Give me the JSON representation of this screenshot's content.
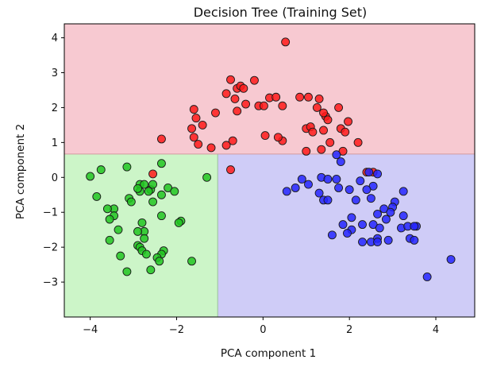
{
  "chart_data": {
    "type": "scatter",
    "title": "Decision Tree (Training Set)",
    "xlabel": "PCA component 1",
    "ylabel": "PCA component 2",
    "xlim": [
      -4.6,
      4.9
    ],
    "ylim": [
      -4.0,
      4.4
    ],
    "xticks": [
      -4,
      -2,
      0,
      2,
      4
    ],
    "yticks": [
      -3,
      -2,
      -1,
      0,
      1,
      2,
      3,
      4
    ],
    "xtick_labels": [
      "−4",
      "−2",
      "0",
      "2",
      "4"
    ],
    "ytick_labels": [
      "−3",
      "−2",
      "−1",
      "0",
      "1",
      "2",
      "3",
      "4"
    ],
    "grid": false,
    "regions": [
      {
        "class": "red",
        "x": [
          -4.6,
          4.9
        ],
        "y": [
          0.67,
          4.4
        ],
        "color": "#f7c9d1"
      },
      {
        "class": "green",
        "x": [
          -4.6,
          -1.05
        ],
        "y": [
          -4.0,
          0.67
        ],
        "color": "#ccf5c8"
      },
      {
        "class": "blue",
        "x": [
          -1.05,
          4.9
        ],
        "y": [
          -4.0,
          0.67
        ],
        "color": "#cfccf7"
      }
    ],
    "boundaries": [
      {
        "orientation": "horizontal",
        "value": 0.67,
        "color": "#d19aa0"
      },
      {
        "orientation": "vertical",
        "value": -1.05,
        "color": "#9ac49a"
      }
    ],
    "series": [
      {
        "color": "#ff1a1a",
        "points": [
          [
            0.52,
            3.88
          ],
          [
            -0.75,
            2.8
          ],
          [
            -0.6,
            2.55
          ],
          [
            -0.52,
            2.62
          ],
          [
            -0.45,
            2.55
          ],
          [
            -0.2,
            2.78
          ],
          [
            -0.85,
            2.4
          ],
          [
            -0.65,
            2.25
          ],
          [
            0.15,
            2.28
          ],
          [
            0.3,
            2.3
          ],
          [
            0.45,
            2.05
          ],
          [
            0.85,
            2.3
          ],
          [
            -0.1,
            2.05
          ],
          [
            0.02,
            2.05
          ],
          [
            -0.4,
            2.1
          ],
          [
            -0.6,
            1.9
          ],
          [
            1.05,
            2.3
          ],
          [
            1.3,
            2.25
          ],
          [
            1.25,
            2.0
          ],
          [
            1.45,
            1.75
          ],
          [
            1.4,
            1.85
          ],
          [
            1.75,
            2.0
          ],
          [
            -1.6,
            1.95
          ],
          [
            -1.65,
            1.4
          ],
          [
            -1.55,
            1.7
          ],
          [
            -1.4,
            1.5
          ],
          [
            -1.1,
            1.85
          ],
          [
            0.05,
            1.2
          ],
          [
            0.45,
            1.05
          ],
          [
            0.35,
            1.15
          ],
          [
            1.5,
            1.65
          ],
          [
            1.0,
            1.4
          ],
          [
            1.1,
            1.45
          ],
          [
            1.15,
            1.3
          ],
          [
            1.4,
            1.35
          ],
          [
            1.8,
            1.4
          ],
          [
            1.9,
            1.3
          ],
          [
            1.97,
            1.6
          ],
          [
            -0.7,
            1.05
          ],
          [
            -1.5,
            0.95
          ],
          [
            -1.2,
            0.85
          ],
          [
            -2.35,
            1.1
          ],
          [
            1.35,
            0.8
          ],
          [
            1.55,
            1.0
          ],
          [
            2.2,
            1.0
          ],
          [
            -0.85,
            0.92
          ],
          [
            -1.6,
            1.15
          ],
          [
            -0.75,
            0.22
          ],
          [
            -2.55,
            0.1
          ],
          [
            1.0,
            0.75
          ],
          [
            1.85,
            0.75
          ],
          [
            2.55,
            0.15
          ],
          [
            2.4,
            0.15
          ]
        ]
      },
      {
        "color": "#21c421",
        "points": [
          [
            -3.75,
            0.22
          ],
          [
            -4.0,
            0.03
          ],
          [
            -3.15,
            0.3
          ],
          [
            -2.35,
            0.4
          ],
          [
            -1.3,
            0.0
          ],
          [
            -2.85,
            -0.2
          ],
          [
            -2.75,
            -0.2
          ],
          [
            -2.6,
            -0.35
          ],
          [
            -2.55,
            -0.2
          ],
          [
            -2.85,
            -0.4
          ],
          [
            -2.65,
            -0.4
          ],
          [
            -2.2,
            -0.3
          ],
          [
            -2.9,
            -0.32
          ],
          [
            -2.05,
            -0.4
          ],
          [
            -3.85,
            -0.55
          ],
          [
            -3.1,
            -0.6
          ],
          [
            -2.35,
            -0.5
          ],
          [
            -3.05,
            -0.7
          ],
          [
            -2.55,
            -0.7
          ],
          [
            -3.45,
            -0.9
          ],
          [
            -3.6,
            -0.9
          ],
          [
            -3.45,
            -1.1
          ],
          [
            -3.55,
            -1.2
          ],
          [
            -2.8,
            -1.3
          ],
          [
            -2.35,
            -1.1
          ],
          [
            -1.9,
            -1.25
          ],
          [
            -1.95,
            -1.3
          ],
          [
            -3.35,
            -1.5
          ],
          [
            -2.75,
            -1.55
          ],
          [
            -2.9,
            -1.55
          ],
          [
            -2.75,
            -1.75
          ],
          [
            -3.55,
            -1.8
          ],
          [
            -2.9,
            -1.95
          ],
          [
            -2.85,
            -2.0
          ],
          [
            -2.8,
            -2.1
          ],
          [
            -2.7,
            -2.2
          ],
          [
            -2.3,
            -2.1
          ],
          [
            -2.35,
            -2.2
          ],
          [
            -2.45,
            -2.3
          ],
          [
            -3.3,
            -2.25
          ],
          [
            -2.4,
            -2.4
          ],
          [
            -1.65,
            -2.4
          ],
          [
            -2.6,
            -2.65
          ],
          [
            -3.15,
            -2.7
          ]
        ]
      },
      {
        "color": "#2424ff",
        "points": [
          [
            1.7,
            0.65
          ],
          [
            1.8,
            0.45
          ],
          [
            2.45,
            0.15
          ],
          [
            2.65,
            0.1
          ],
          [
            2.25,
            -0.1
          ],
          [
            2.55,
            -0.25
          ],
          [
            1.35,
            0.0
          ],
          [
            1.5,
            -0.05
          ],
          [
            1.7,
            -0.05
          ],
          [
            0.9,
            -0.05
          ],
          [
            1.05,
            -0.2
          ],
          [
            0.75,
            -0.3
          ],
          [
            0.55,
            -0.4
          ],
          [
            1.3,
            -0.45
          ],
          [
            1.75,
            -0.3
          ],
          [
            2.4,
            -0.35
          ],
          [
            2.0,
            -0.35
          ],
          [
            3.25,
            -0.4
          ],
          [
            1.4,
            -0.65
          ],
          [
            1.5,
            -0.65
          ],
          [
            2.15,
            -0.65
          ],
          [
            2.5,
            -0.6
          ],
          [
            3.05,
            -0.7
          ],
          [
            3.0,
            -0.85
          ],
          [
            2.8,
            -0.9
          ],
          [
            2.95,
            -1.0
          ],
          [
            2.65,
            -1.05
          ],
          [
            2.85,
            -1.2
          ],
          [
            3.25,
            -1.1
          ],
          [
            2.05,
            -1.15
          ],
          [
            2.55,
            -1.35
          ],
          [
            2.3,
            -1.35
          ],
          [
            1.85,
            -1.35
          ],
          [
            2.7,
            -1.45
          ],
          [
            3.2,
            -1.45
          ],
          [
            3.35,
            -1.4
          ],
          [
            3.55,
            -1.4
          ],
          [
            3.5,
            -1.4
          ],
          [
            2.05,
            -1.5
          ],
          [
            1.95,
            -1.6
          ],
          [
            1.6,
            -1.65
          ],
          [
            2.65,
            -1.75
          ],
          [
            3.4,
            -1.75
          ],
          [
            3.5,
            -1.8
          ],
          [
            2.3,
            -1.85
          ],
          [
            2.5,
            -1.85
          ],
          [
            2.65,
            -1.85
          ],
          [
            2.9,
            -1.8
          ],
          [
            4.35,
            -2.35
          ],
          [
            3.8,
            -2.85
          ]
        ]
      }
    ]
  }
}
